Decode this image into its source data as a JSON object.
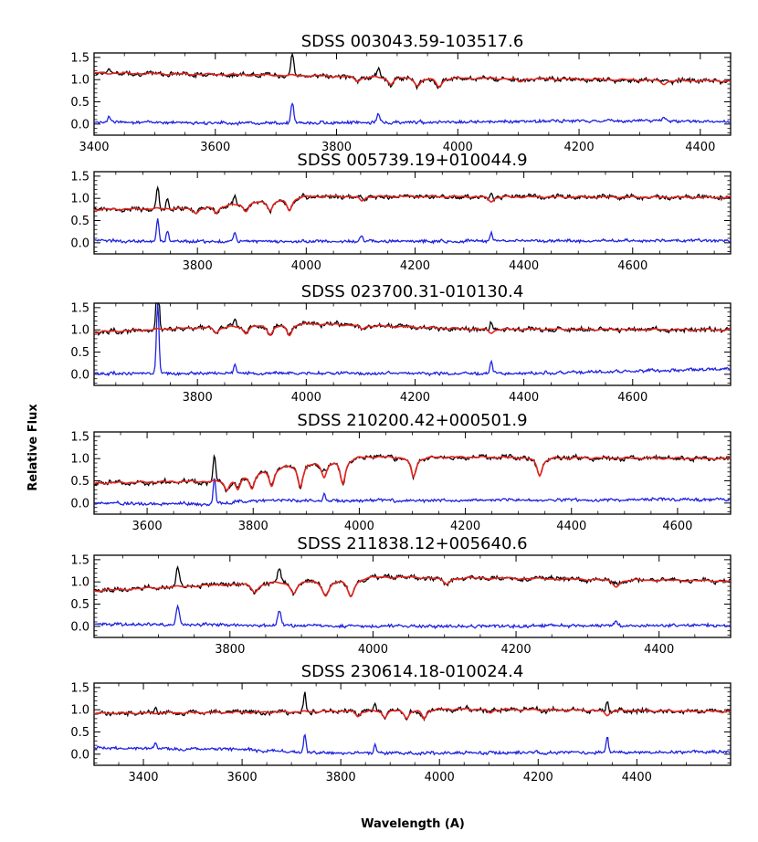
{
  "figure": {
    "ylabel": "Relative Flux",
    "xlabel": "Wavelength (A)"
  },
  "colors": {
    "observed": "#000000",
    "model": "#e8231f",
    "residual": "#1f23e0"
  },
  "chart_data": [
    {
      "type": "line",
      "title": "SDSS 003043.59-103517.6",
      "xlim": [
        3400,
        4450
      ],
      "ylim": [
        -0.25,
        1.6
      ],
      "xticks": [
        3400,
        3600,
        3800,
        4000,
        4200,
        4400
      ],
      "yticks": [
        0.0,
        0.5,
        1.0,
        1.5
      ],
      "continuum": [
        [
          3400,
          1.15
        ],
        [
          3700,
          1.1
        ],
        [
          4000,
          1.04
        ],
        [
          4450,
          0.97
        ]
      ],
      "residual_base": [
        [
          3400,
          0.05
        ],
        [
          3700,
          0.02
        ],
        [
          4300,
          0.08
        ],
        [
          4450,
          0.05
        ]
      ],
      "absorption": [
        [
          3835,
          0.1
        ],
        [
          3889,
          0.15
        ],
        [
          3934,
          0.18
        ],
        [
          3969,
          0.2
        ],
        [
          4102,
          0.07
        ],
        [
          4340,
          0.08
        ]
      ],
      "emission": [
        [
          3727,
          0.45
        ],
        [
          3869,
          0.2
        ],
        [
          4340,
          0.1
        ],
        [
          3425,
          0.12
        ]
      ]
    },
    {
      "type": "line",
      "title": "SDSS 005739.19+010044.9",
      "xlim": [
        3610,
        4780
      ],
      "ylim": [
        -0.25,
        1.6
      ],
      "xticks": [
        3800,
        4000,
        4200,
        4400,
        4600
      ],
      "yticks": [
        0.0,
        0.5,
        1.0,
        1.5
      ],
      "continuum": [
        [
          3610,
          0.75
        ],
        [
          3800,
          0.78
        ],
        [
          3990,
          1.05
        ],
        [
          4780,
          1.02
        ]
      ],
      "residual_base": [
        [
          3610,
          0.05
        ],
        [
          3800,
          0.03
        ],
        [
          4780,
          0.05
        ]
      ],
      "absorption": [
        [
          3798,
          0.1
        ],
        [
          3835,
          0.14
        ],
        [
          3889,
          0.18
        ],
        [
          3934,
          0.22
        ],
        [
          3969,
          0.28
        ],
        [
          4102,
          0.1
        ],
        [
          4340,
          0.1
        ]
      ],
      "emission": [
        [
          3727,
          0.5
        ],
        [
          3745,
          0.25
        ],
        [
          3869,
          0.2
        ],
        [
          4102,
          0.12
        ],
        [
          4340,
          0.2
        ]
      ]
    },
    {
      "type": "line",
      "title": "SDSS 023700.31-010130.4",
      "xlim": [
        3610,
        4780
      ],
      "ylim": [
        -0.25,
        1.6
      ],
      "xticks": [
        3800,
        4000,
        4200,
        4400,
        4600
      ],
      "yticks": [
        0.0,
        0.5,
        1.0,
        1.5
      ],
      "continuum": [
        [
          3610,
          0.95
        ],
        [
          3990,
          1.15
        ],
        [
          4300,
          1.02
        ],
        [
          4780,
          1.0
        ]
      ],
      "residual_base": [
        [
          3610,
          0.02
        ],
        [
          4400,
          0.02
        ],
        [
          4780,
          0.12
        ]
      ],
      "absorption": [
        [
          3835,
          0.12
        ],
        [
          3889,
          0.16
        ],
        [
          3934,
          0.22
        ],
        [
          3969,
          0.25
        ],
        [
          4102,
          0.08
        ],
        [
          4340,
          0.08
        ]
      ],
      "emission": [
        [
          3727,
          1.6
        ],
        [
          3869,
          0.2
        ],
        [
          4340,
          0.25
        ]
      ]
    },
    {
      "type": "line",
      "title": "SDSS 210200.42+000501.9",
      "xlim": [
        3500,
        4700
      ],
      "ylim": [
        -0.25,
        1.6
      ],
      "xticks": [
        3600,
        3800,
        4000,
        4200,
        4400,
        4600
      ],
      "yticks": [
        0.0,
        0.5,
        1.0,
        1.5
      ],
      "continuum": [
        [
          3500,
          0.45
        ],
        [
          3720,
          0.5
        ],
        [
          3850,
          0.85
        ],
        [
          4000,
          1.05
        ],
        [
          4700,
          1.0
        ]
      ],
      "residual_base": [
        [
          3500,
          0.0
        ],
        [
          3720,
          -0.02
        ],
        [
          3800,
          0.05
        ],
        [
          4700,
          0.08
        ]
      ],
      "absorption": [
        [
          3750,
          0.25
        ],
        [
          3771,
          0.3
        ],
        [
          3798,
          0.35
        ],
        [
          3835,
          0.4
        ],
        [
          3889,
          0.5
        ],
        [
          3934,
          0.35
        ],
        [
          3969,
          0.55
        ],
        [
          4102,
          0.45
        ],
        [
          4340,
          0.4
        ]
      ],
      "emission": [
        [
          3727,
          0.6
        ],
        [
          3934,
          0.15
        ]
      ]
    },
    {
      "type": "line",
      "title": "SDSS 211838.12+005640.6",
      "xlim": [
        3610,
        4500
      ],
      "ylim": [
        -0.25,
        1.6
      ],
      "xticks": [
        3800,
        4000,
        4200,
        4400
      ],
      "yticks": [
        0.0,
        0.5,
        1.0,
        1.5
      ],
      "continuum": [
        [
          3610,
          0.8
        ],
        [
          3800,
          0.95
        ],
        [
          4000,
          1.12
        ],
        [
          4500,
          1.02
        ]
      ],
      "residual_base": [
        [
          3610,
          0.05
        ],
        [
          4000,
          0.0
        ],
        [
          4500,
          0.02
        ]
      ],
      "absorption": [
        [
          3835,
          0.2
        ],
        [
          3889,
          0.25
        ],
        [
          3934,
          0.35
        ],
        [
          3969,
          0.4
        ],
        [
          4102,
          0.15
        ],
        [
          4340,
          0.15
        ]
      ],
      "emission": [
        [
          3727,
          0.4
        ],
        [
          3869,
          0.35
        ],
        [
          4340,
          0.1
        ]
      ]
    },
    {
      "type": "line",
      "title": "SDSS 230614.18-010024.4",
      "xlim": [
        3300,
        4590
      ],
      "ylim": [
        -0.25,
        1.6
      ],
      "xticks": [
        3400,
        3600,
        3800,
        4000,
        4200,
        4400
      ],
      "yticks": [
        0.0,
        0.5,
        1.0,
        1.5
      ],
      "continuum": [
        [
          3300,
          0.92
        ],
        [
          3700,
          0.95
        ],
        [
          4000,
          1.02
        ],
        [
          4590,
          0.96
        ]
      ],
      "residual_base": [
        [
          3300,
          0.15
        ],
        [
          3600,
          0.1
        ],
        [
          3800,
          0.02
        ],
        [
          4590,
          0.05
        ]
      ],
      "absorption": [
        [
          3835,
          0.12
        ],
        [
          3889,
          0.15
        ],
        [
          3934,
          0.18
        ],
        [
          3969,
          0.2
        ],
        [
          4102,
          0.08
        ],
        [
          4340,
          0.1
        ]
      ],
      "emission": [
        [
          3727,
          0.4
        ],
        [
          3869,
          0.2
        ],
        [
          4340,
          0.35
        ],
        [
          3425,
          0.12
        ]
      ]
    }
  ]
}
